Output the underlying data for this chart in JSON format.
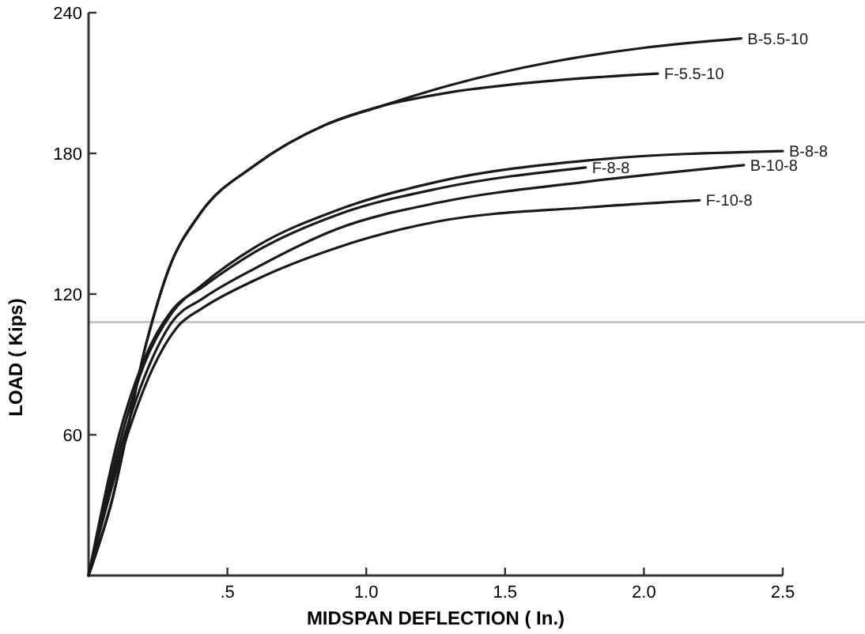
{
  "chart_data": {
    "type": "line",
    "xlabel": "MIDSPAN  DEFLECTION ( In.)",
    "ylabel": "LOAD ( Kips)",
    "xlim": [
      0,
      2.5
    ],
    "ylim": [
      0,
      240
    ],
    "xticks": [
      {
        "value": 0.5,
        "label": ".5"
      },
      {
        "value": 1,
        "label": "1.0"
      },
      {
        "value": 1.5,
        "label": "1.5"
      },
      {
        "value": 2,
        "label": "2.0"
      },
      {
        "value": 2.5,
        "label": "2.5"
      }
    ],
    "yticks": [
      60,
      120,
      180,
      240
    ],
    "grid": false,
    "marker": "none",
    "line_style": "solid",
    "ref_lines": [
      {
        "axis": "y",
        "value": 108,
        "color": "#c8c8c8"
      }
    ],
    "series": [
      {
        "name": "B-5.5-10",
        "color": "#1a1a1a",
        "x": [
          0,
          0.08,
          0.21,
          0.29,
          0.4,
          0.6,
          0.85,
          1.05,
          1.3,
          1.67,
          2,
          2.35
        ],
        "values": [
          0,
          30,
          100,
          131,
          154,
          175,
          192,
          200,
          209,
          219,
          225,
          229
        ]
      },
      {
        "name": "F-5.5-10",
        "color": "#1a1a1a",
        "x": [
          0,
          0.08,
          0.21,
          0.29,
          0.4,
          0.6,
          0.85,
          1.05,
          1.3,
          1.67,
          2.05
        ],
        "values": [
          0,
          30,
          100,
          131,
          154,
          175,
          192,
          200,
          206,
          211,
          214
        ]
      },
      {
        "name": "B-8-8",
        "color": "#1a1a1a",
        "x": [
          0,
          0.12,
          0.2,
          0.3,
          0.41,
          0.6,
          0.9,
          1.26,
          1.8,
          2.5
        ],
        "values": [
          0,
          60,
          90,
          112,
          124,
          140,
          156,
          168,
          177,
          181
        ]
      },
      {
        "name": "F-8-8",
        "color": "#1a1a1a",
        "x": [
          0,
          0.11,
          0.2,
          0.3,
          0.41,
          0.6,
          0.9,
          1.26,
          1.79
        ],
        "values": [
          0,
          60,
          92,
          113,
          123,
          138,
          154,
          165,
          174
        ]
      },
      {
        "name": "B-10-8",
        "color": "#1a1a1a",
        "x": [
          0,
          0.13,
          0.22,
          0.3,
          0.41,
          0.6,
          0.9,
          1.26,
          1.8,
          2.36
        ],
        "values": [
          0,
          60,
          90,
          108,
          118,
          131,
          148,
          159,
          168,
          175
        ]
      },
      {
        "name": "F-10-8",
        "color": "#1a1a1a",
        "x": [
          0,
          0.14,
          0.23,
          0.32,
          0.41,
          0.6,
          0.9,
          1.26,
          1.8,
          2.2
        ],
        "values": [
          0,
          60,
          88,
          106,
          114,
          126,
          140,
          151,
          157,
          160
        ]
      }
    ]
  }
}
